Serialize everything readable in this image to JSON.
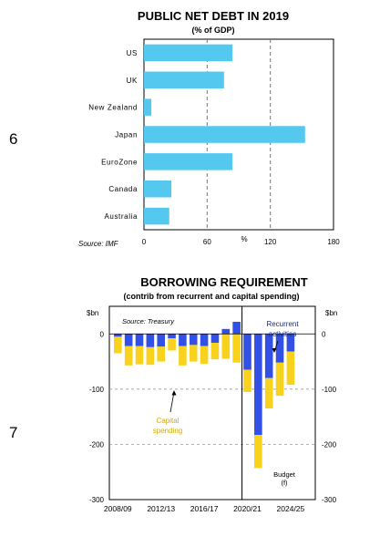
{
  "page_numbers": [
    "6",
    "7"
  ],
  "chart_data": [
    {
      "type": "bar",
      "orientation": "horizontal",
      "title": "PUBLIC NET DEBT IN 2019",
      "subtitle": "(% of GDP)",
      "categories": [
        "US",
        "UK",
        "New Zealand",
        "Japan",
        "EuroZone",
        "Canada",
        "Australia"
      ],
      "values": [
        84,
        76,
        7,
        153,
        84,
        26,
        24
      ],
      "xlim": [
        0,
        180
      ],
      "xticks": [
        "0",
        "60",
        "120",
        "180"
      ],
      "xlabel": "%",
      "reference_lines": [
        60,
        120
      ],
      "source": "Source: IMF",
      "bar_color": "#55c8f0",
      "grid": false
    },
    {
      "type": "bar",
      "stacked": true,
      "title": "BORROWING REQUIREMENT",
      "subtitle": "(contrib from recurrent and capital spending)",
      "ylabel_left": "$bn",
      "ylabel_right": "$bn",
      "ylim": [
        -300,
        50
      ],
      "yticks": [
        "0",
        "-100",
        "-200",
        "-300"
      ],
      "x_tick_labels": [
        "2008/09",
        "2012/13",
        "2016/17",
        "2020/21",
        "2024/25"
      ],
      "categories": [
        "2008/09",
        "2009/10",
        "2010/11",
        "2011/12",
        "2012/13",
        "2013/14",
        "2014/15",
        "2015/16",
        "2016/17",
        "2017/18",
        "2018/19",
        "2019/20",
        "2020/21",
        "2021/22",
        "2022/23",
        "2023/24",
        "2024/25"
      ],
      "series": [
        {
          "name": "Recurrent activities",
          "color": "#3350e6",
          "values": [
            -5,
            -22,
            -22,
            -24,
            -23,
            -8,
            -22,
            -20,
            -22,
            -16,
            9,
            22,
            -65,
            -183,
            -80,
            -52,
            -32
          ]
        },
        {
          "name": "Capital spending",
          "color": "#f8d21c",
          "values": [
            -30,
            -35,
            -33,
            -32,
            -27,
            -22,
            -35,
            -30,
            -32,
            -30,
            -45,
            -52,
            -40,
            -60,
            -55,
            -60,
            -60
          ]
        }
      ],
      "budget_divider_after": "2019/20",
      "source": "Source: Treasury",
      "annotations": {
        "recurrent": "Recurrent activities",
        "capital": "Capital spending",
        "budget_line1": "Budget",
        "budget_line2": "(f)"
      },
      "grid": "horizontal-dashed"
    }
  ]
}
